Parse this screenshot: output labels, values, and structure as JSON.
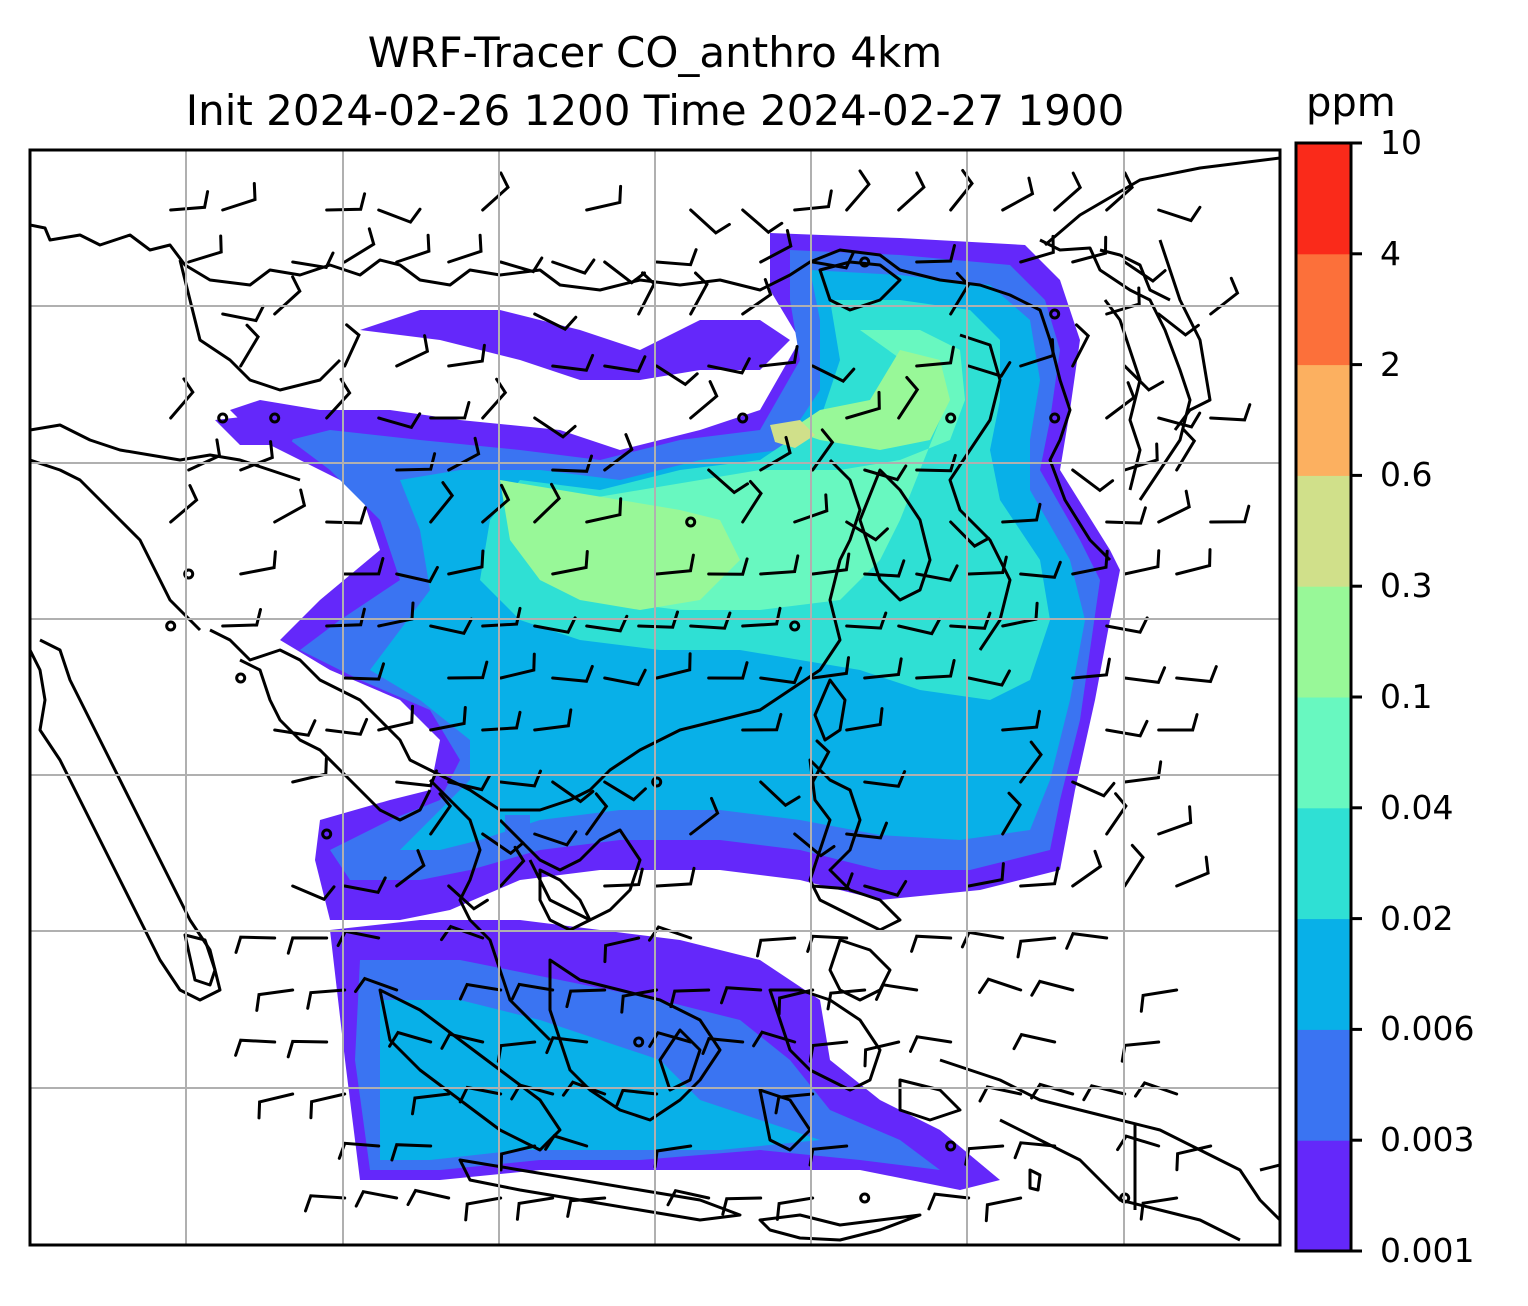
{
  "title": {
    "line1": "WRF-Tracer CO_anthro 4km",
    "line2": "Init 2024-02-26 1200 Time 2024-02-27 1900"
  },
  "colorbar": {
    "units": "ppm",
    "ticks": [
      "0.001",
      "0.003",
      "0.006",
      "0.02",
      "0.04",
      "0.1",
      "0.3",
      "0.6",
      "2",
      "4",
      "10"
    ],
    "colors": [
      "#6428fa",
      "#3a74f2",
      "#08b0e8",
      "#2fe0d4",
      "#68f8c0",
      "#98f898",
      "#d0e08a",
      "#fcb060",
      "#fc703a",
      "#fa2a1a"
    ]
  },
  "chart_data": {
    "type": "heatmap",
    "variable": "CO_anthro",
    "units": "ppm",
    "levels": [
      0.001,
      0.003,
      0.006,
      0.02,
      0.04,
      0.1,
      0.3,
      0.6,
      2,
      4,
      10
    ],
    "overlay": "wind-barbs",
    "coastlines": true,
    "gridlines": true
  }
}
